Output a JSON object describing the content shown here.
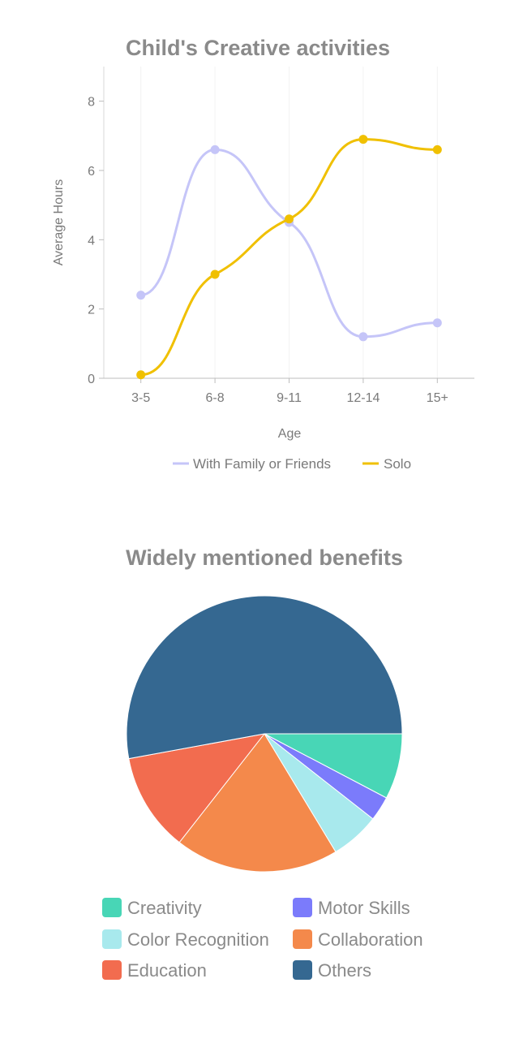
{
  "chart_data": [
    {
      "type": "line",
      "title": "Child's Creative activities",
      "xlabel": "Age",
      "ylabel": "Average Hours",
      "categories": [
        "3-5",
        "6-8",
        "9-11",
        "12-14",
        "15+"
      ],
      "ylim": [
        0,
        9
      ],
      "yticks": [
        0,
        2,
        4,
        6,
        8
      ],
      "legend_position": "bottom",
      "series": [
        {
          "name": "With Family or Friends",
          "color": "#c5c5f8",
          "values": [
            2.4,
            6.6,
            4.5,
            1.2,
            1.6
          ]
        },
        {
          "name": "Solo",
          "color": "#f0c000",
          "values": [
            0.1,
            3.0,
            4.6,
            6.9,
            6.6
          ]
        }
      ]
    },
    {
      "type": "pie",
      "title": "Widely mentioned benefits",
      "legend_position": "bottom",
      "slices": [
        {
          "label": "Creativity",
          "value": 8,
          "color": "#48d6b6"
        },
        {
          "label": "Motor Skills",
          "value": 3,
          "color": "#7b7bfb"
        },
        {
          "label": "Color Recognition",
          "value": 6,
          "color": "#a8e9ed"
        },
        {
          "label": "Collaboration",
          "value": 20,
          "color": "#f4894b"
        },
        {
          "label": "Education",
          "value": 12,
          "color": "#f26c4f"
        },
        {
          "label": "Others",
          "value": 55,
          "color": "#356891"
        }
      ]
    }
  ]
}
